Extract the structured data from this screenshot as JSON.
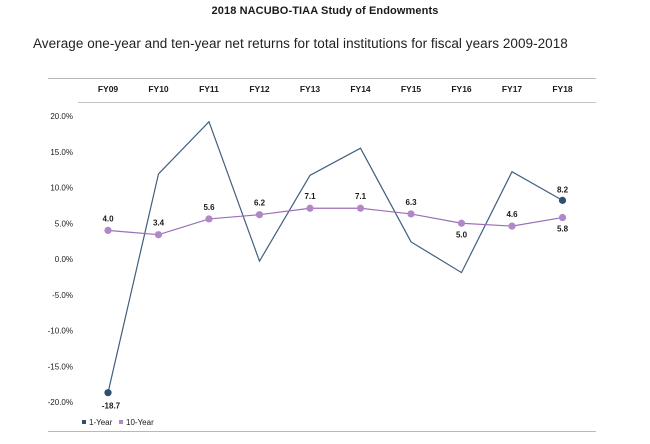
{
  "header": {
    "title": "2018 NACUBO-TIAA Study of Endowments"
  },
  "chart_data": {
    "type": "line",
    "title": "Average one-year and ten-year net returns for total institutions for fiscal years 2009-2018",
    "categories": [
      "FY09",
      "FY10",
      "FY11",
      "FY12",
      "FY13",
      "FY14",
      "FY15",
      "FY16",
      "FY17",
      "FY18"
    ],
    "ylim": [
      -20,
      20
    ],
    "yticks": [
      20,
      15,
      10,
      5,
      0,
      -5,
      -10,
      -15,
      -20
    ],
    "ytick_labels": [
      "20.0%",
      "15.0%",
      "10.0%",
      "5.0%",
      "0.0%",
      "-5.0%",
      "-10.0%",
      "-15.0%",
      "-20.0%"
    ],
    "grid": false,
    "legend_position": "bottom-left",
    "series": [
      {
        "name": "1-Year",
        "values": [
          -18.7,
          11.9,
          19.2,
          -0.3,
          11.7,
          15.5,
          2.4,
          -1.9,
          12.2,
          8.2
        ],
        "labels": [
          "-18.7",
          "",
          "",
          "",
          "",
          "",
          "",
          "",
          "",
          "8.2"
        ],
        "color": "#3f5f7f",
        "marker_color": "#2f4f6f"
      },
      {
        "name": "10-Year",
        "values": [
          4.0,
          3.4,
          5.6,
          6.2,
          7.1,
          7.1,
          6.3,
          5.0,
          4.6,
          5.8
        ],
        "labels": [
          "4.0",
          "3.4",
          "5.6",
          "6.2",
          "7.1",
          "7.1",
          "6.3",
          "5.0",
          "4.6",
          "5.8"
        ],
        "color": "#9b6fb7",
        "marker_color": "#b088c8"
      }
    ]
  }
}
